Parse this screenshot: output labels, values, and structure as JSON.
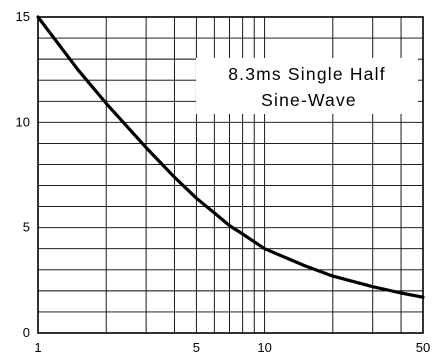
{
  "chart_data": {
    "type": "line",
    "title": "",
    "xlabel": "",
    "ylabel": "",
    "x_scale": "log",
    "xlim": [
      1,
      50
    ],
    "ylim": [
      0,
      15
    ],
    "grid": true,
    "x_minor_grid": [
      1,
      2,
      3,
      4,
      5,
      6,
      7,
      8,
      9,
      10,
      20,
      30,
      40,
      50
    ],
    "y_grid_step": 1,
    "x_ticks": [
      {
        "value": 1,
        "label": "1"
      },
      {
        "value": 5,
        "label": "5"
      },
      {
        "value": 10,
        "label": "10"
      },
      {
        "value": 50,
        "label": "50"
      }
    ],
    "y_ticks": [
      {
        "value": 0,
        "label": "0"
      },
      {
        "value": 5,
        "label": "5"
      },
      {
        "value": 10,
        "label": "10"
      },
      {
        "value": 15,
        "label": "15"
      }
    ],
    "annotation": {
      "lines": [
        "8.3ms Single Half",
        "Sine-Wave"
      ],
      "placement": "top-right"
    },
    "series": [
      {
        "x": [
          1,
          1.5,
          2,
          3,
          4,
          5,
          6,
          7,
          8,
          10,
          15,
          20,
          30,
          40,
          50
        ],
        "y": [
          15.0,
          12.5,
          10.9,
          8.8,
          7.4,
          6.4,
          5.7,
          5.1,
          4.7,
          4.0,
          3.2,
          2.7,
          2.2,
          1.9,
          1.7
        ],
        "color": "#000000"
      }
    ]
  }
}
